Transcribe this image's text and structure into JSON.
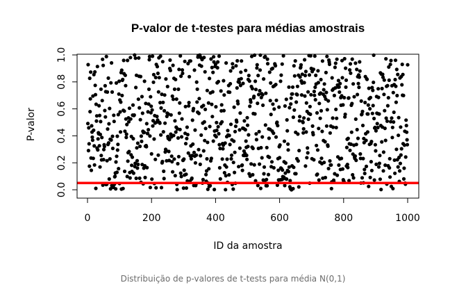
{
  "chart_data": {
    "type": "scatter",
    "title": "P-valor de t-testes para médias amostrais",
    "xlabel": "ID da amostra",
    "ylabel": "P-valor",
    "xlim": [
      0,
      1000
    ],
    "ylim": [
      0,
      1
    ],
    "x_ticks": [
      "0",
      "200",
      "400",
      "600",
      "800",
      "1000"
    ],
    "y_ticks": [
      "0.0",
      "0.2",
      "0.4",
      "0.6",
      "0.8",
      "1.0"
    ],
    "grid": false,
    "legend": "none",
    "n_points": 1000,
    "distribution": "uniform",
    "point_color": "#000000",
    "reference_line": {
      "y": 0.05,
      "color": "#ff0000"
    }
  },
  "caption": "Distribuição de p-valores de t-tests para média N(0,1)"
}
